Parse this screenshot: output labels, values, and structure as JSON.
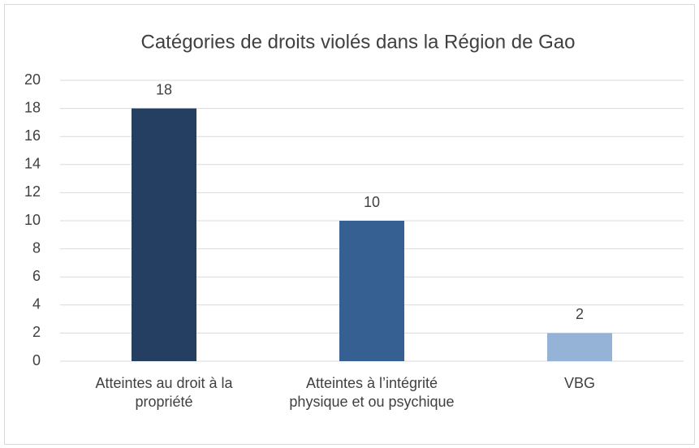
{
  "chart_data": {
    "type": "bar",
    "title": "Catégories de droits violés dans la Région de Gao",
    "categories": [
      "Atteintes au droit à la propriété",
      "Atteintes à l’intégrité physique et ou psychique",
      "VBG"
    ],
    "values": [
      18,
      10,
      2
    ],
    "colors": [
      "#243f61",
      "#366092",
      "#95b3d7"
    ],
    "ylim": [
      0,
      20
    ],
    "yticks": [
      0,
      2,
      4,
      6,
      8,
      10,
      12,
      14,
      16,
      18,
      20
    ],
    "grid": true
  }
}
